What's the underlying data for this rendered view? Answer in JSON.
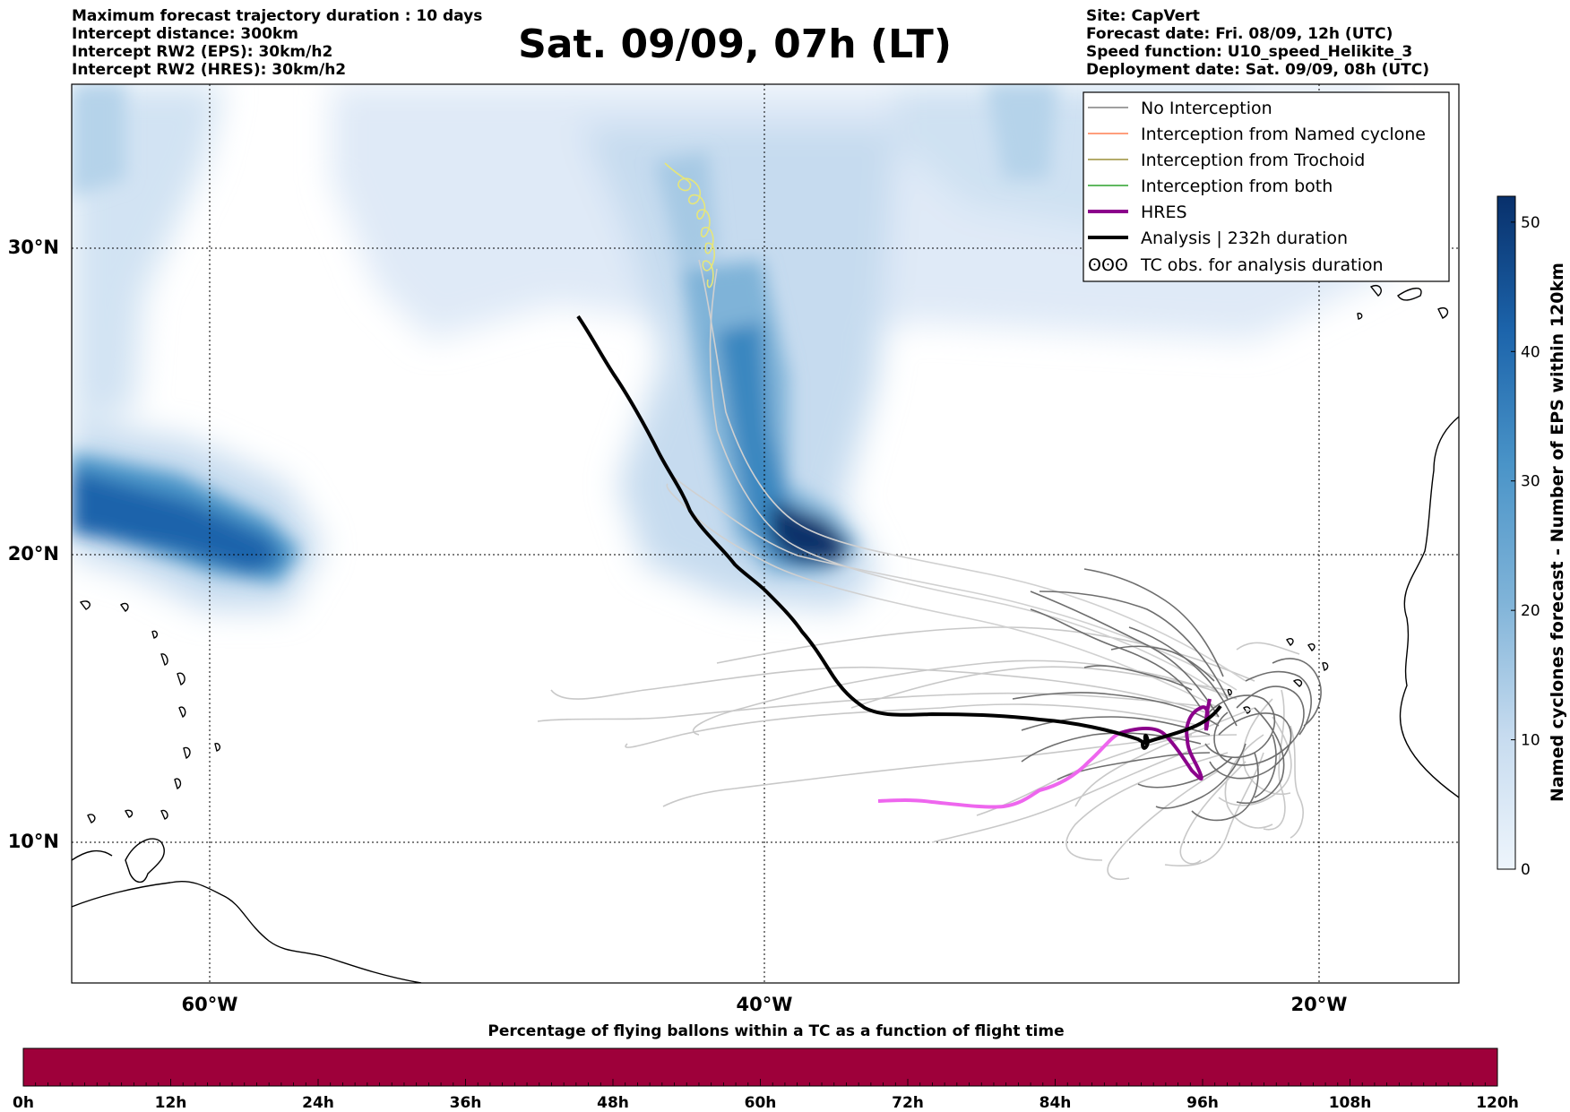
{
  "header_left": {
    "line1": "Maximum forecast trajectory duration : 10 days",
    "line2": "Intercept distance: 300km",
    "line3": "Intercept RW2 (EPS):  30km/h2",
    "line4": "Intercept RW2 (HRES): 30km/h2"
  },
  "title": "Sat. 09/09, 07h (LT)",
  "header_right": {
    "line1": "Site: CapVert",
    "line2": "Forecast date: Fri. 08/09, 12h (UTC)",
    "line3": "Speed function: U10_speed_Helikite_3",
    "line4": "Deployment date: Sat. 09/09, 08h (UTC)"
  },
  "map": {
    "lat_labels": [
      "30°N",
      "20°N",
      "10°N"
    ],
    "lon_labels": [
      "60°W",
      "40°W",
      "20°W"
    ],
    "lat_lines": [
      30,
      20,
      10
    ],
    "lon_lines": [
      -60,
      -40,
      -20
    ],
    "extent": {
      "lon_min": -65,
      "lon_max": -15,
      "lat_min": 5.4,
      "lat_max": 35.2
    }
  },
  "legend": {
    "items": [
      {
        "label": "No Interception",
        "color": "#808080",
        "width": 1.5
      },
      {
        "label": "Interception from Named cyclone",
        "color": "#ff7f50",
        "width": 1.5
      },
      {
        "label": "Interception from Trochoid",
        "color": "#9b8f3a",
        "width": 1.5
      },
      {
        "label": "Interception from both",
        "color": "#2ca02c",
        "width": 1.5
      },
      {
        "label": "HRES",
        "color": "#8b008b",
        "width": 4
      },
      {
        "label": "Analysis | 232h duration",
        "color": "#000000",
        "width": 4
      }
    ],
    "tc_label": "TC obs. for analysis duration",
    "tc_symbol": "ʘʘʘ"
  },
  "colorbar": {
    "title": "Named cyclones forecast - Number of EPS within 120km",
    "ticks": [
      "0",
      "10",
      "20",
      "30",
      "40",
      "50"
    ],
    "tick_values": [
      0,
      10,
      20,
      30,
      40,
      50
    ],
    "max": 52,
    "color_low": "#e3eef8",
    "color_high": "#08306b"
  },
  "time_bar": {
    "title": "Percentage of flying ballons within a TC as a function of flight time",
    "ticks": [
      "0h",
      "12h",
      "24h",
      "36h",
      "48h",
      "60h",
      "72h",
      "84h",
      "96h",
      "108h",
      "120h"
    ],
    "color": "#9e003a"
  },
  "colors": {
    "analysis": "#000000",
    "hres": "#8b008b",
    "hres_light": "#ee66ee",
    "ensemble_dark": "#707070",
    "ensemble_light": "#c8c8c8",
    "tc_obs": "#e6e67a",
    "coast": "#000000"
  }
}
